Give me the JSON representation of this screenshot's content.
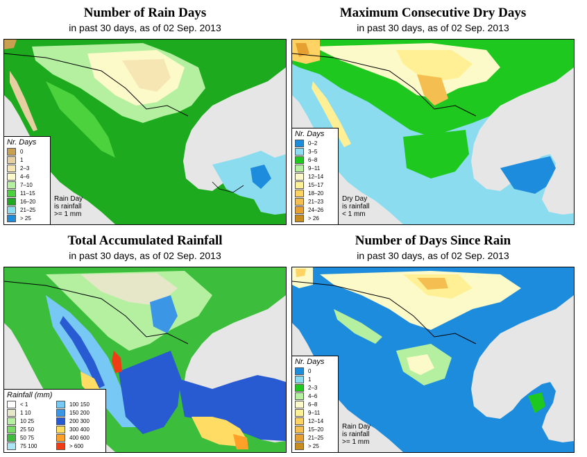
{
  "panels": [
    {
      "title": "Number of Rain Days",
      "subtitle": "in past 30 days, as of  02 Sep. 2013",
      "legend_title": "Nr. Days",
      "legend": [
        {
          "label": "0",
          "color": "#c8a050"
        },
        {
          "label": "1",
          "color": "#e6cfa0"
        },
        {
          "label": "2–3",
          "color": "#f5e6b4"
        },
        {
          "label": "4–6",
          "color": "#fcfac8"
        },
        {
          "label": "7–10",
          "color": "#b4f0a0"
        },
        {
          "label": "11–15",
          "color": "#4cd23c"
        },
        {
          "label": "16–20",
          "color": "#1eaa1e"
        },
        {
          "label": "21–25",
          "color": "#8cdcf0"
        },
        {
          "label": "> 25",
          "color": "#1e8cdc"
        }
      ],
      "note": [
        "Rain Day",
        "is rainfall",
        ">= 1 mm"
      ]
    },
    {
      "title": "Maximum Consecutive Dry Days",
      "subtitle": "in past 30 days, as of  02 Sep. 2013",
      "legend_title": "Nr. Days",
      "legend": [
        {
          "label": "0–2",
          "color": "#1e8cdc"
        },
        {
          "label": "3–5",
          "color": "#8cdcf0"
        },
        {
          "label": "6–8",
          "color": "#1ec81e"
        },
        {
          "label": "9–11",
          "color": "#b4f0a0"
        },
        {
          "label": "12–14",
          "color": "#fcfac8"
        },
        {
          "label": "15–17",
          "color": "#fff096"
        },
        {
          "label": "18–20",
          "color": "#ffd264"
        },
        {
          "label": "21–23",
          "color": "#f5be50"
        },
        {
          "label": "24–26",
          "color": "#e6a032"
        },
        {
          "label": "> 26",
          "color": "#c88c1e"
        }
      ],
      "note": [
        "Dry Day",
        "is rainfall",
        "< 1 mm"
      ]
    },
    {
      "title": "Total Accumulated Rainfall",
      "subtitle": "in past 30 days, as of  02 Sep. 2013",
      "legend_title": "Rainfall (mm)",
      "legend": [
        {
          "label": "< 1",
          "color": "#ffffff"
        },
        {
          "label": "1   10",
          "color": "#e6e6c8"
        },
        {
          "label": "10   25",
          "color": "#b4f0a0"
        },
        {
          "label": "25   50",
          "color": "#78dc64"
        },
        {
          "label": "50   75",
          "color": "#3cbe3c"
        },
        {
          "label": "75   100",
          "color": "#aae6f5"
        },
        {
          "label": "100   150",
          "color": "#78c8f5"
        },
        {
          "label": "150   200",
          "color": "#3c96e6"
        },
        {
          "label": "200   300",
          "color": "#285ad2"
        },
        {
          "label": "300   400",
          "color": "#ffdc64"
        },
        {
          "label": "400   600",
          "color": "#ffa028"
        },
        {
          "label": "> 600",
          "color": "#f03c14"
        }
      ],
      "note": []
    },
    {
      "title": "Number of Days Since Rain",
      "subtitle": "in past 30 days, as of  02 Sep. 2013",
      "legend_title": "Nr. Days",
      "legend": [
        {
          "label": "0",
          "color": "#1e8cdc"
        },
        {
          "label": "1",
          "color": "#8cdcf0"
        },
        {
          "label": "2–3",
          "color": "#1ec81e"
        },
        {
          "label": "4–6",
          "color": "#b4f0a0"
        },
        {
          "label": "6–8",
          "color": "#fcfac8"
        },
        {
          "label": "9–11",
          "color": "#fff096"
        },
        {
          "label": "12–14",
          "color": "#ffd264"
        },
        {
          "label": "15–20",
          "color": "#f5be50"
        },
        {
          "label": "21–25",
          "color": "#e6a032"
        },
        {
          "label": "> 25",
          "color": "#c88c1e"
        }
      ],
      "note": [
        "Rain Day",
        "is rainfall",
        ">= 1 mm"
      ]
    }
  ],
  "colors": {
    "ocean": "#e6e6e6",
    "border_line": "#000000"
  }
}
